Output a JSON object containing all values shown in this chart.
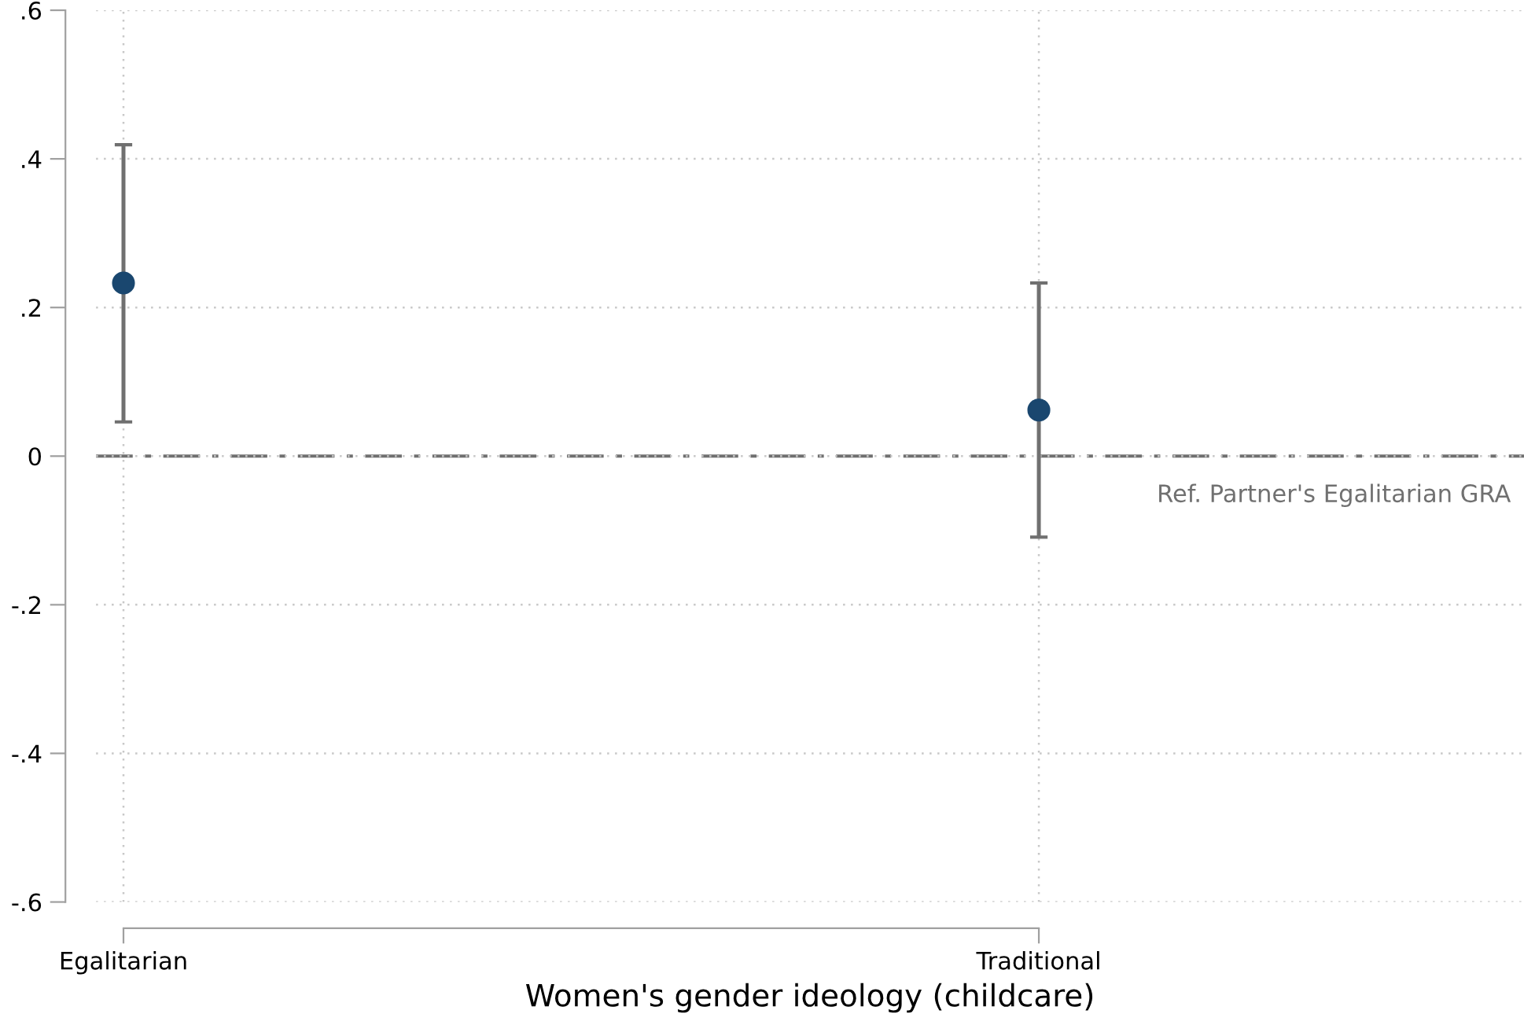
{
  "chart_data": {
    "type": "scatter",
    "xlabel": "Women's gender ideology (childcare)",
    "categories": [
      "Egalitarian",
      "Traditional"
    ],
    "series": [
      {
        "color": "#1a476f",
        "values": [
          0.233,
          0.062
        ],
        "errors": [
          [
            0.046,
            0.419
          ],
          [
            -0.109,
            0.233
          ]
        ]
      }
    ],
    "ylim": [
      -0.6,
      0.6
    ],
    "yticks": [
      {
        "value": -0.6,
        "label": "-.6"
      },
      {
        "value": -0.4,
        "label": "-.4"
      },
      {
        "value": -0.2,
        "label": "-.2"
      },
      0,
      {
        "value": 0.2,
        "label": ".2"
      },
      {
        "value": 0.4,
        "label": ".4"
      },
      {
        "value": 0.6,
        "label": ".6"
      }
    ],
    "ref_lines": [
      {
        "axis": "y",
        "value": 0,
        "label": "Ref. Partner's Egalitarian GRA",
        "color": "#707070",
        "line_style": "dashdot"
      }
    ],
    "grid": true,
    "marker": "circle",
    "legend": false
  }
}
